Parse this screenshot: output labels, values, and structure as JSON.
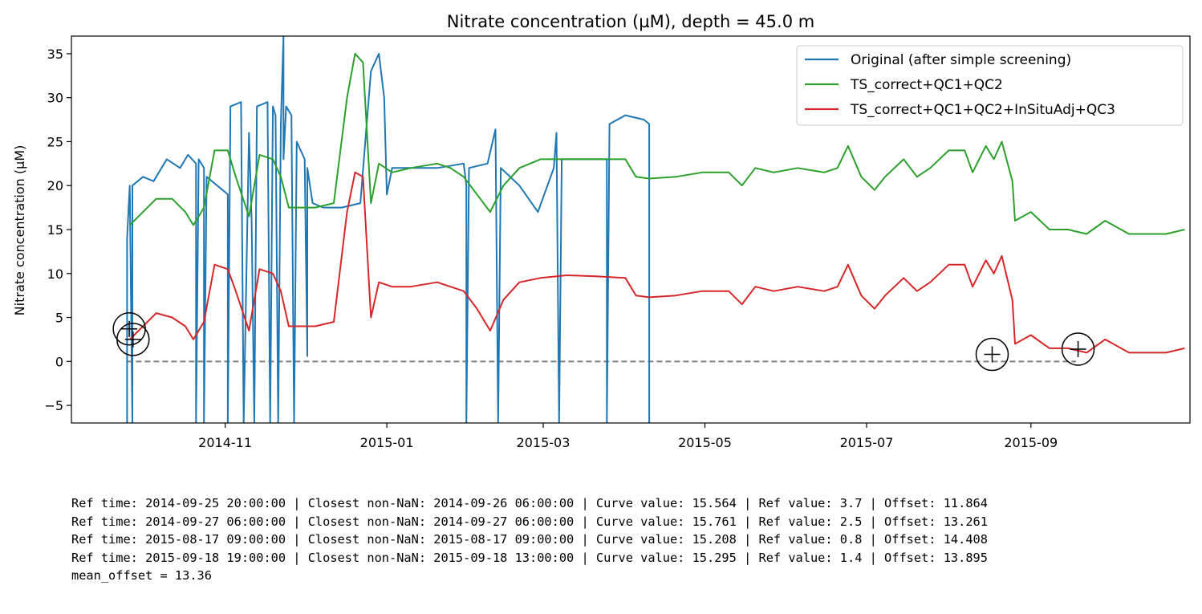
{
  "chart_data": {
    "type": "line",
    "title": "Nitrate concentration (µM), depth = 45.0 m",
    "xlabel": "",
    "ylabel": "Nitrate concentration (µM)",
    "xlim": [
      "2014-09-04",
      "2015-10-31"
    ],
    "ylim": [
      -7,
      37
    ],
    "yticks": [
      -5,
      0,
      5,
      10,
      15,
      20,
      25,
      30,
      35
    ],
    "xticks": [
      "2014-11",
      "2015-01",
      "2015-03",
      "2015-05",
      "2015-07",
      "2015-09"
    ],
    "xtick_dates": [
      "2014-11-01",
      "2015-01-01",
      "2015-03-01",
      "2015-05-01",
      "2015-07-01",
      "2015-09-01"
    ],
    "grid": false,
    "legend_position": "top-right",
    "series": [
      {
        "name": "Original (after simple screening)",
        "color": "#1f77b4",
        "points": [
          [
            "2014-09-25",
            -7
          ],
          [
            "2014-09-25",
            14
          ],
          [
            "2014-09-26",
            20
          ],
          [
            "2014-09-27",
            -7
          ],
          [
            "2014-09-27",
            20
          ],
          [
            "2014-10-01",
            21
          ],
          [
            "2014-10-05",
            20.5
          ],
          [
            "2014-10-10",
            23
          ],
          [
            "2014-10-15",
            22
          ],
          [
            "2014-10-18",
            23.5
          ],
          [
            "2014-10-21",
            22.5
          ],
          [
            "2014-10-21",
            -7
          ],
          [
            "2014-10-22",
            23
          ],
          [
            "2014-10-24",
            22
          ],
          [
            "2014-10-24",
            -7
          ],
          [
            "2014-10-25",
            21
          ],
          [
            "2014-10-29",
            20
          ],
          [
            "2014-11-02",
            19
          ],
          [
            "2014-11-02",
            -7
          ],
          [
            "2014-11-03",
            29
          ],
          [
            "2014-11-07",
            29.5
          ],
          [
            "2014-11-08",
            -7
          ],
          [
            "2014-11-10",
            26
          ],
          [
            "2014-11-11",
            16
          ],
          [
            "2014-11-12",
            -7
          ],
          [
            "2014-11-13",
            29
          ],
          [
            "2014-11-17",
            29.5
          ],
          [
            "2014-11-18",
            -7
          ],
          [
            "2014-11-19",
            29
          ],
          [
            "2014-11-20",
            28
          ],
          [
            "2014-11-21",
            -7
          ],
          [
            "2014-11-22",
            27
          ],
          [
            "2014-11-23",
            37
          ],
          [
            "2014-11-23",
            23
          ],
          [
            "2014-11-24",
            29
          ],
          [
            "2014-11-26",
            28
          ],
          [
            "2014-11-27",
            -7
          ],
          [
            "2014-11-28",
            25
          ],
          [
            "2014-12-01",
            23
          ],
          [
            "2014-12-02",
            0.6
          ],
          [
            "2014-12-02",
            22
          ],
          [
            "2014-12-04",
            18
          ],
          [
            "2014-12-08",
            17.5
          ],
          [
            "2014-12-15",
            17.5
          ],
          [
            "2014-12-22",
            18
          ],
          [
            "2014-12-26",
            33
          ],
          [
            "2014-12-29",
            35
          ],
          [
            "2014-12-31",
            30
          ],
          [
            "2015-01-01",
            19
          ],
          [
            "2015-01-03",
            22
          ],
          [
            "2015-01-10",
            22
          ],
          [
            "2015-01-20",
            22
          ],
          [
            "2015-01-30",
            22.5
          ],
          [
            "2015-01-31",
            20
          ],
          [
            "2015-01-31",
            -7
          ],
          [
            "2015-02-01",
            22
          ],
          [
            "2015-02-08",
            22.5
          ],
          [
            "2015-02-11",
            26.4
          ],
          [
            "2015-02-12",
            -7
          ],
          [
            "2015-02-13",
            22
          ],
          [
            "2015-02-20",
            20
          ],
          [
            "2015-02-27",
            17
          ],
          [
            "2015-03-05",
            22
          ],
          [
            "2015-03-06",
            26
          ],
          [
            "2015-03-07",
            -7
          ],
          [
            "2015-03-08",
            23
          ],
          [
            "2015-03-15",
            23
          ],
          [
            "2015-03-24",
            23
          ],
          [
            "2015-03-25",
            23
          ],
          [
            "2015-03-25",
            -7
          ],
          [
            "2015-03-26",
            27
          ],
          [
            "2015-04-01",
            28
          ],
          [
            "2015-04-08",
            27.5
          ],
          [
            "2015-04-10",
            27
          ],
          [
            "2015-04-10",
            -7
          ],
          [
            "2015-04-10",
            27
          ]
        ]
      },
      {
        "name": "TS_correct+QC1+QC2",
        "color": "#2ca02c",
        "points": [
          [
            "2014-09-26",
            15.5
          ],
          [
            "2014-10-01",
            17
          ],
          [
            "2014-10-06",
            18.5
          ],
          [
            "2014-10-12",
            18.5
          ],
          [
            "2014-10-17",
            17
          ],
          [
            "2014-10-20",
            15.5
          ],
          [
            "2014-10-24",
            17.5
          ],
          [
            "2014-10-28",
            24
          ],
          [
            "2014-11-02",
            24
          ],
          [
            "2014-11-05",
            21
          ],
          [
            "2014-11-10",
            16.5
          ],
          [
            "2014-11-14",
            23.5
          ],
          [
            "2014-11-19",
            23
          ],
          [
            "2014-11-22",
            21
          ],
          [
            "2014-11-25",
            17.5
          ],
          [
            "2014-12-05",
            17.5
          ],
          [
            "2014-12-12",
            18
          ],
          [
            "2014-12-17",
            30
          ],
          [
            "2014-12-20",
            35
          ],
          [
            "2014-12-23",
            34
          ],
          [
            "2014-12-26",
            18
          ],
          [
            "2014-12-29",
            22.5
          ],
          [
            "2015-01-03",
            21.5
          ],
          [
            "2015-01-10",
            22
          ],
          [
            "2015-01-20",
            22.5
          ],
          [
            "2015-01-25",
            22
          ],
          [
            "2015-01-30",
            21
          ],
          [
            "2015-02-04",
            19
          ],
          [
            "2015-02-09",
            17
          ],
          [
            "2015-02-14",
            20
          ],
          [
            "2015-02-20",
            22
          ],
          [
            "2015-02-28",
            23
          ],
          [
            "2015-03-10",
            23
          ],
          [
            "2015-03-20",
            23
          ],
          [
            "2015-04-01",
            23
          ],
          [
            "2015-04-05",
            21
          ],
          [
            "2015-04-10",
            20.8
          ],
          [
            "2015-04-20",
            21
          ],
          [
            "2015-04-30",
            21.5
          ],
          [
            "2015-05-10",
            21.5
          ],
          [
            "2015-05-15",
            20
          ],
          [
            "2015-05-20",
            22
          ],
          [
            "2015-05-27",
            21.5
          ],
          [
            "2015-06-05",
            22
          ],
          [
            "2015-06-15",
            21.5
          ],
          [
            "2015-06-20",
            22
          ],
          [
            "2015-06-24",
            24.5
          ],
          [
            "2015-06-29",
            21
          ],
          [
            "2015-07-04",
            19.5
          ],
          [
            "2015-07-08",
            21
          ],
          [
            "2015-07-15",
            23
          ],
          [
            "2015-07-20",
            21
          ],
          [
            "2015-07-25",
            22
          ],
          [
            "2015-08-01",
            24
          ],
          [
            "2015-08-07",
            24
          ],
          [
            "2015-08-10",
            21.5
          ],
          [
            "2015-08-15",
            24.5
          ],
          [
            "2015-08-18",
            23
          ],
          [
            "2015-08-21",
            25
          ],
          [
            "2015-08-25",
            20.5
          ],
          [
            "2015-08-26",
            16
          ],
          [
            "2015-09-01",
            17
          ],
          [
            "2015-09-08",
            15
          ],
          [
            "2015-09-15",
            15
          ],
          [
            "2015-09-22",
            14.5
          ],
          [
            "2015-09-29",
            16
          ],
          [
            "2015-10-08",
            14.5
          ],
          [
            "2015-10-15",
            14.5
          ],
          [
            "2015-10-22",
            14.5
          ],
          [
            "2015-10-29",
            15
          ]
        ]
      },
      {
        "name": "TS_correct+QC1+QC2+InSituAdj+QC3",
        "color": "#d62728",
        "points": [
          [
            "2014-09-26",
            2.5
          ],
          [
            "2014-10-01",
            4
          ],
          [
            "2014-10-06",
            5.5
          ],
          [
            "2014-10-12",
            5
          ],
          [
            "2014-10-17",
            4
          ],
          [
            "2014-10-20",
            2.5
          ],
          [
            "2014-10-24",
            4.5
          ],
          [
            "2014-10-28",
            11
          ],
          [
            "2014-11-02",
            10.5
          ],
          [
            "2014-11-05",
            8
          ],
          [
            "2014-11-10",
            3.5
          ],
          [
            "2014-11-14",
            10.5
          ],
          [
            "2014-11-19",
            10
          ],
          [
            "2014-11-22",
            8
          ],
          [
            "2014-11-25",
            4
          ],
          [
            "2014-12-05",
            4
          ],
          [
            "2014-12-12",
            4.5
          ],
          [
            "2014-12-17",
            17
          ],
          [
            "2014-12-20",
            21.5
          ],
          [
            "2014-12-23",
            21
          ],
          [
            "2014-12-26",
            5
          ],
          [
            "2014-12-29",
            9
          ],
          [
            "2015-01-03",
            8.5
          ],
          [
            "2015-01-10",
            8.5
          ],
          [
            "2015-01-20",
            9
          ],
          [
            "2015-01-25",
            8.5
          ],
          [
            "2015-01-30",
            8
          ],
          [
            "2015-02-04",
            6
          ],
          [
            "2015-02-09",
            3.5
          ],
          [
            "2015-02-14",
            7
          ],
          [
            "2015-02-20",
            9
          ],
          [
            "2015-02-28",
            9.5
          ],
          [
            "2015-03-10",
            9.8
          ],
          [
            "2015-03-20",
            9.7
          ],
          [
            "2015-04-01",
            9.5
          ],
          [
            "2015-04-05",
            7.5
          ],
          [
            "2015-04-10",
            7.3
          ],
          [
            "2015-04-20",
            7.5
          ],
          [
            "2015-04-30",
            8
          ],
          [
            "2015-05-10",
            8
          ],
          [
            "2015-05-15",
            6.5
          ],
          [
            "2015-05-20",
            8.5
          ],
          [
            "2015-05-27",
            8
          ],
          [
            "2015-06-05",
            8.5
          ],
          [
            "2015-06-15",
            8
          ],
          [
            "2015-06-20",
            8.5
          ],
          [
            "2015-06-24",
            11
          ],
          [
            "2015-06-29",
            7.5
          ],
          [
            "2015-07-04",
            6
          ],
          [
            "2015-07-08",
            7.5
          ],
          [
            "2015-07-15",
            9.5
          ],
          [
            "2015-07-20",
            8
          ],
          [
            "2015-07-25",
            9
          ],
          [
            "2015-08-01",
            11
          ],
          [
            "2015-08-07",
            11
          ],
          [
            "2015-08-10",
            8.5
          ],
          [
            "2015-08-15",
            11.5
          ],
          [
            "2015-08-18",
            10
          ],
          [
            "2015-08-21",
            12
          ],
          [
            "2015-08-25",
            7
          ],
          [
            "2015-08-26",
            2
          ],
          [
            "2015-09-01",
            3
          ],
          [
            "2015-09-08",
            1.5
          ],
          [
            "2015-09-15",
            1.5
          ],
          [
            "2015-09-22",
            1
          ],
          [
            "2015-09-29",
            2.5
          ],
          [
            "2015-10-08",
            1
          ],
          [
            "2015-10-15",
            1
          ],
          [
            "2015-10-22",
            1
          ],
          [
            "2015-10-29",
            1.5
          ]
        ]
      }
    ],
    "zero_line": {
      "y": 0,
      "color": "#808080",
      "style": "dashed",
      "x_from": "2014-09-25",
      "x_to": "2015-09-18"
    },
    "reference_points": [
      {
        "time": "2014-09-25 20:00:00",
        "value": 3.7
      },
      {
        "time": "2014-09-27 06:00:00",
        "value": 2.5
      },
      {
        "time": "2015-08-17 09:00:00",
        "value": 0.8
      },
      {
        "time": "2015-09-18 19:00:00",
        "value": 1.4
      }
    ]
  },
  "ref_log": [
    "Ref time: 2014-09-25 20:00:00 | Closest non-NaN: 2014-09-26 06:00:00 | Curve value: 15.564 | Ref value: 3.7 | Offset: 11.864",
    "Ref time: 2014-09-27 06:00:00 | Closest non-NaN: 2014-09-27 06:00:00 | Curve value: 15.761 | Ref value: 2.5 | Offset: 13.261",
    "Ref time: 2015-08-17 09:00:00 | Closest non-NaN: 2015-08-17 09:00:00 | Curve value: 15.208 | Ref value: 0.8 | Offset: 14.408",
    "Ref time: 2015-09-18 19:00:00 | Closest non-NaN: 2015-09-18 13:00:00 | Curve value: 15.295 | Ref value: 1.4 | Offset: 13.895",
    "mean_offset = 13.36"
  ]
}
